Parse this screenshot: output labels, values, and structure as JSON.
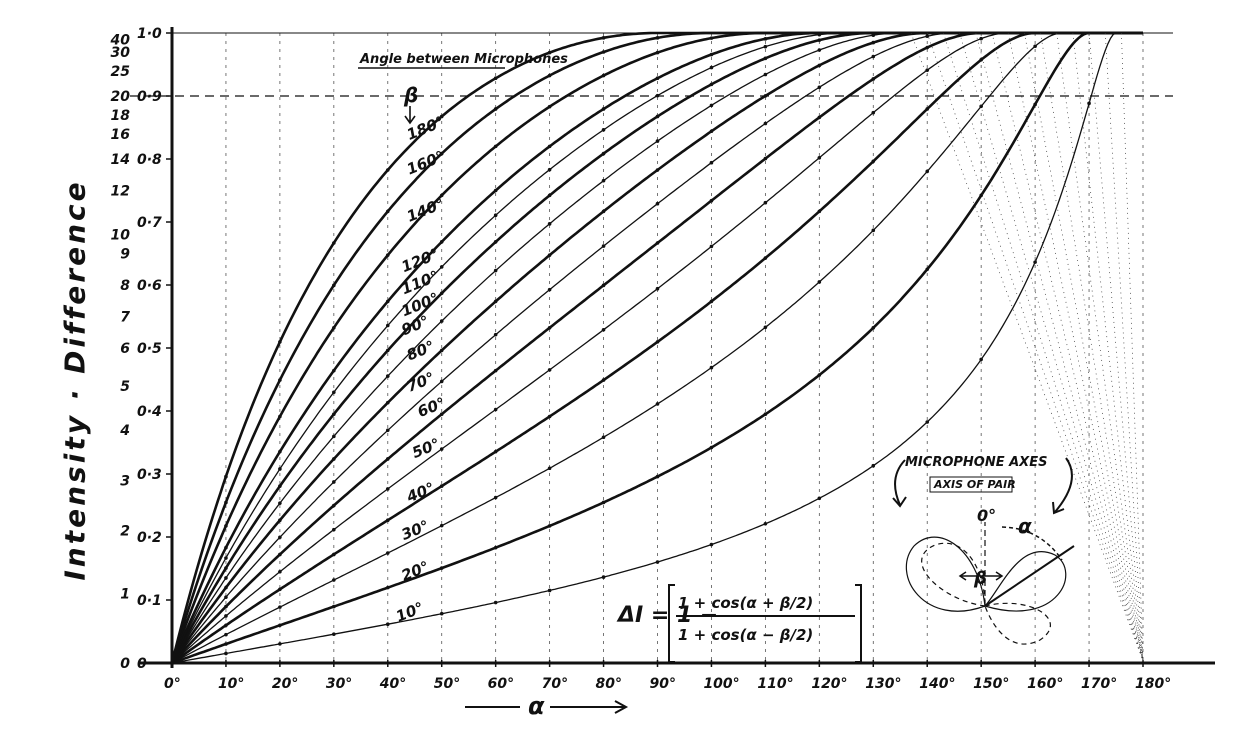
{
  "chart_data": {
    "type": "line",
    "ylabel": "Intensity · Difference",
    "xlabel": "α",
    "xlim": [
      0,
      180
    ],
    "ylim": [
      0,
      1.0
    ],
    "x_ticks": [
      "0°",
      "10°",
      "20°",
      "30°",
      "40°",
      "50°",
      "60°",
      "70°",
      "80°",
      "90°",
      "100°",
      "110°",
      "120°",
      "130°",
      "140°",
      "150°",
      "160°",
      "170°",
      "180°"
    ],
    "y_ticks_right": [
      "0",
      "0·1",
      "0·2",
      "0·3",
      "0·4",
      "0·5",
      "0·6",
      "0·7",
      "0·8",
      "0·9",
      "1·0"
    ],
    "y_ticks_left": [
      {
        "v": 0,
        "t": "0"
      },
      {
        "v": 0.11,
        "t": "1"
      },
      {
        "v": 0.21,
        "t": "2"
      },
      {
        "v": 0.29,
        "t": "3"
      },
      {
        "v": 0.37,
        "t": "4"
      },
      {
        "v": 0.44,
        "t": "5"
      },
      {
        "v": 0.5,
        "t": "6"
      },
      {
        "v": 0.55,
        "t": "7"
      },
      {
        "v": 0.6,
        "t": "8"
      },
      {
        "v": 0.65,
        "t": "9"
      },
      {
        "v": 0.68,
        "t": "10"
      },
      {
        "v": 0.75,
        "t": "12"
      },
      {
        "v": 0.8,
        "t": "14"
      },
      {
        "v": 0.84,
        "t": "16"
      },
      {
        "v": 0.87,
        "t": "18"
      },
      {
        "v": 0.9,
        "t": "20"
      },
      {
        "v": 0.94,
        "t": "25"
      },
      {
        "v": 0.97,
        "t": "30"
      },
      {
        "v": 0.99,
        "t": "40"
      }
    ],
    "reference_line": 0.9,
    "grid": "vertical dashed",
    "legend_title": "Angle between Microphones",
    "legend_symbol": "β",
    "series": [
      {
        "name": "10°",
        "beta": 10,
        "label_y": 0.065,
        "label_x": 42
      },
      {
        "name": "20°",
        "beta": 20,
        "label_y": 0.13,
        "label_x": 43
      },
      {
        "name": "30°",
        "beta": 30,
        "label_y": 0.195,
        "label_x": 43
      },
      {
        "name": "40°",
        "beta": 40,
        "label_y": 0.255,
        "label_x": 44
      },
      {
        "name": "50°",
        "beta": 50,
        "label_y": 0.325,
        "label_x": 45
      },
      {
        "name": "60°",
        "beta": 60,
        "label_y": 0.39,
        "label_x": 46
      },
      {
        "name": "70°",
        "beta": 70,
        "label_y": 0.43,
        "label_x": 44
      },
      {
        "name": "80°",
        "beta": 80,
        "label_y": 0.48,
        "label_x": 44
      },
      {
        "name": "90°",
        "beta": 90,
        "label_y": 0.52,
        "label_x": 43
      },
      {
        "name": "100°",
        "beta": 100,
        "label_y": 0.55,
        "label_x": 43
      },
      {
        "name": "110°",
        "beta": 110,
        "label_y": 0.585,
        "label_x": 43
      },
      {
        "name": "120°",
        "beta": 120,
        "label_y": 0.62,
        "label_x": 43
      },
      {
        "name": "140°",
        "beta": 140,
        "label_y": 0.7,
        "label_x": 44
      },
      {
        "name": "160°",
        "beta": 160,
        "label_y": 0.775,
        "label_x": 44
      },
      {
        "name": "180°",
        "beta": 180,
        "label_y": 0.83,
        "label_x": 44
      }
    ],
    "formula": {
      "lhs": "ΔI = 1 −",
      "numerator": "1 + cos(α + β/2)",
      "denominator": "1 + cos(α − β/2)"
    },
    "inset": {
      "title": "MICROPHONE AXES",
      "axis_label": "AXIS OF PAIR",
      "zero_label": "0°",
      "alpha_label": "α",
      "beta_label": "β"
    }
  }
}
